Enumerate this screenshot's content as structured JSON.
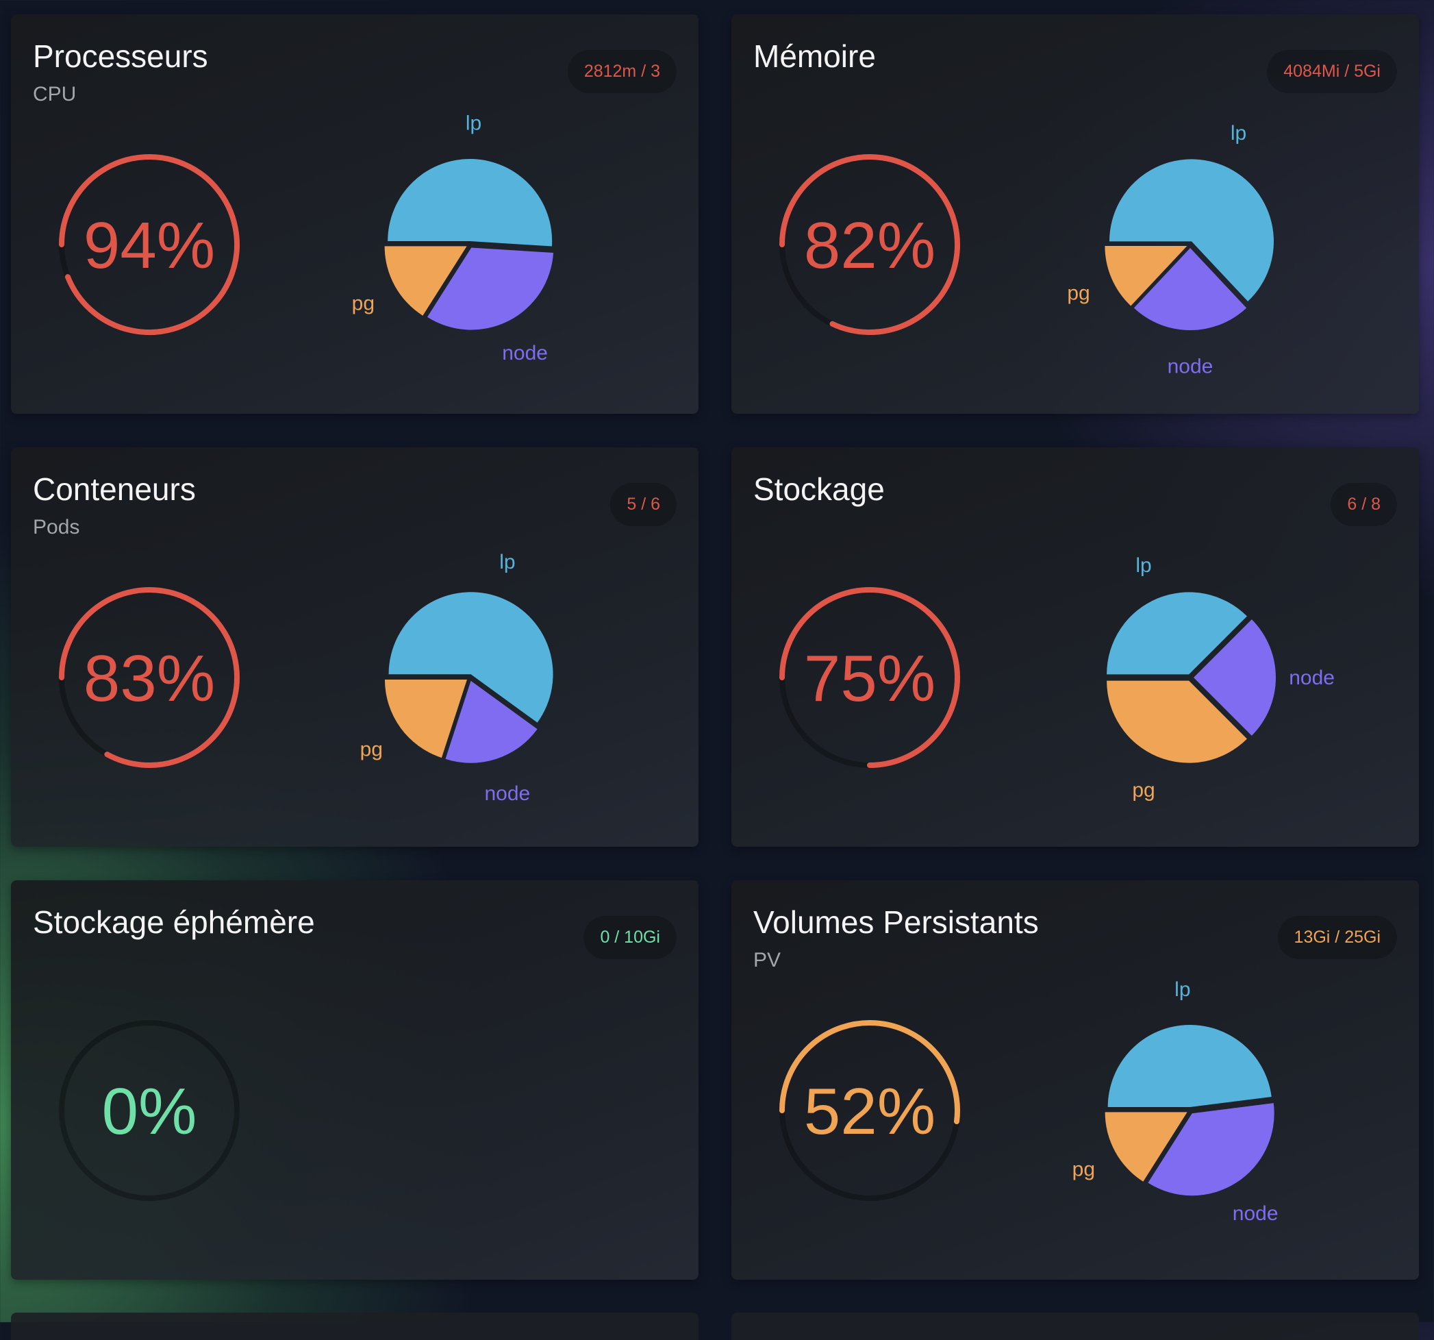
{
  "colors": {
    "lp": "#56b4dc",
    "pg": "#f0a456",
    "node": "#7f6cf0",
    "critical": "#e0574a",
    "warning": "#f0a454",
    "ok": "#6ee0a8",
    "track": "rgba(0,0,0,0.28)"
  },
  "cards": [
    {
      "title": "Processeurs",
      "subtitle": "CPU",
      "badge": "2812m / 3",
      "percent_label": "94%",
      "percent": 94,
      "status": "critical",
      "chart_data": {
        "type": "pie",
        "slices": [
          {
            "name": "lp",
            "value": 51
          },
          {
            "name": "node",
            "value": 33
          },
          {
            "name": "pg",
            "value": 16
          }
        ]
      }
    },
    {
      "title": "Mémoire",
      "subtitle": "",
      "badge": "4084Mi / 5Gi",
      "percent_label": "82%",
      "percent": 82,
      "status": "critical",
      "chart_data": {
        "type": "pie",
        "slices": [
          {
            "name": "lp",
            "value": 63
          },
          {
            "name": "node",
            "value": 24
          },
          {
            "name": "pg",
            "value": 13
          }
        ]
      }
    },
    {
      "title": "Conteneurs",
      "subtitle": "Pods",
      "badge": "5 / 6",
      "percent_label": "83%",
      "percent": 83,
      "status": "critical",
      "chart_data": {
        "type": "pie",
        "slices": [
          {
            "name": "lp",
            "value": 60
          },
          {
            "name": "node",
            "value": 20
          },
          {
            "name": "pg",
            "value": 20
          }
        ]
      }
    },
    {
      "title": "Stockage",
      "subtitle": "",
      "badge": "6 / 8",
      "percent_label": "75%",
      "percent": 75,
      "status": "critical",
      "chart_data": {
        "type": "pie",
        "slices": [
          {
            "name": "lp",
            "value": 37.5
          },
          {
            "name": "node",
            "value": 25
          },
          {
            "name": "pg",
            "value": 37.5
          }
        ]
      }
    },
    {
      "title": "Stockage éphémère",
      "subtitle": "",
      "badge": "0 / 10Gi",
      "percent_label": "0%",
      "percent": 0,
      "status": "ok",
      "chart_data": null
    },
    {
      "title": "Volumes Persistants",
      "subtitle": "PV",
      "badge": "13Gi / 25Gi",
      "percent_label": "52%",
      "percent": 52,
      "status": "warning",
      "chart_data": {
        "type": "pie",
        "slices": [
          {
            "name": "lp",
            "value": 48
          },
          {
            "name": "node",
            "value": 36
          },
          {
            "name": "pg",
            "value": 16
          }
        ]
      }
    }
  ]
}
